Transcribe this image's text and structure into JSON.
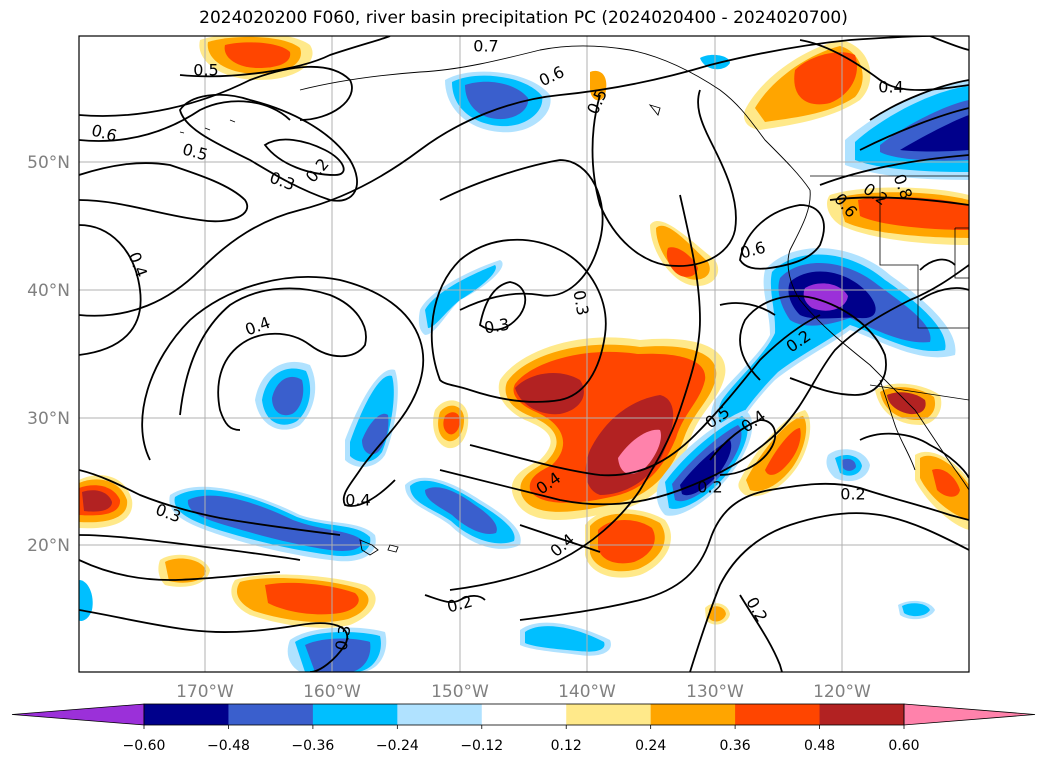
{
  "title": "2024020200 F060, river basin precipitation PC (2024020400 - 2024020700)",
  "map": {
    "lat_labels": [
      "50°N",
      "40°N",
      "30°N",
      "20°N"
    ],
    "lon_labels": [
      "170°W",
      "160°W",
      "150°W",
      "140°W",
      "130°W",
      "120°W"
    ],
    "contour_labels": [
      "0.7",
      "0.5",
      "0.6",
      "0.6",
      "0.5",
      "0.5",
      "0.2",
      "0.3",
      "0.4",
      "0.4",
      "0.3",
      "0.8",
      "0.6",
      "0.4",
      "0.3",
      "0.2",
      "0.2",
      "0.6",
      "0.5",
      "0.4",
      "0.4",
      "0.3",
      "0.4",
      "0.4",
      "0.2",
      "0.2",
      "0.3",
      "0.2",
      "0.2"
    ]
  },
  "colorbar": {
    "ticks": [
      "−0.60",
      "−0.48",
      "−0.36",
      "−0.24",
      "−0.12",
      "0.12",
      "0.24",
      "0.36",
      "0.48",
      "0.60"
    ],
    "colors": [
      "#9b30d9",
      "#00008b",
      "#3a5fcd",
      "#00bfff",
      "#b0e2ff",
      "#ffffff",
      "#ffe98a",
      "#ffa500",
      "#ff4500",
      "#b22222",
      "#ff82ab"
    ]
  }
}
